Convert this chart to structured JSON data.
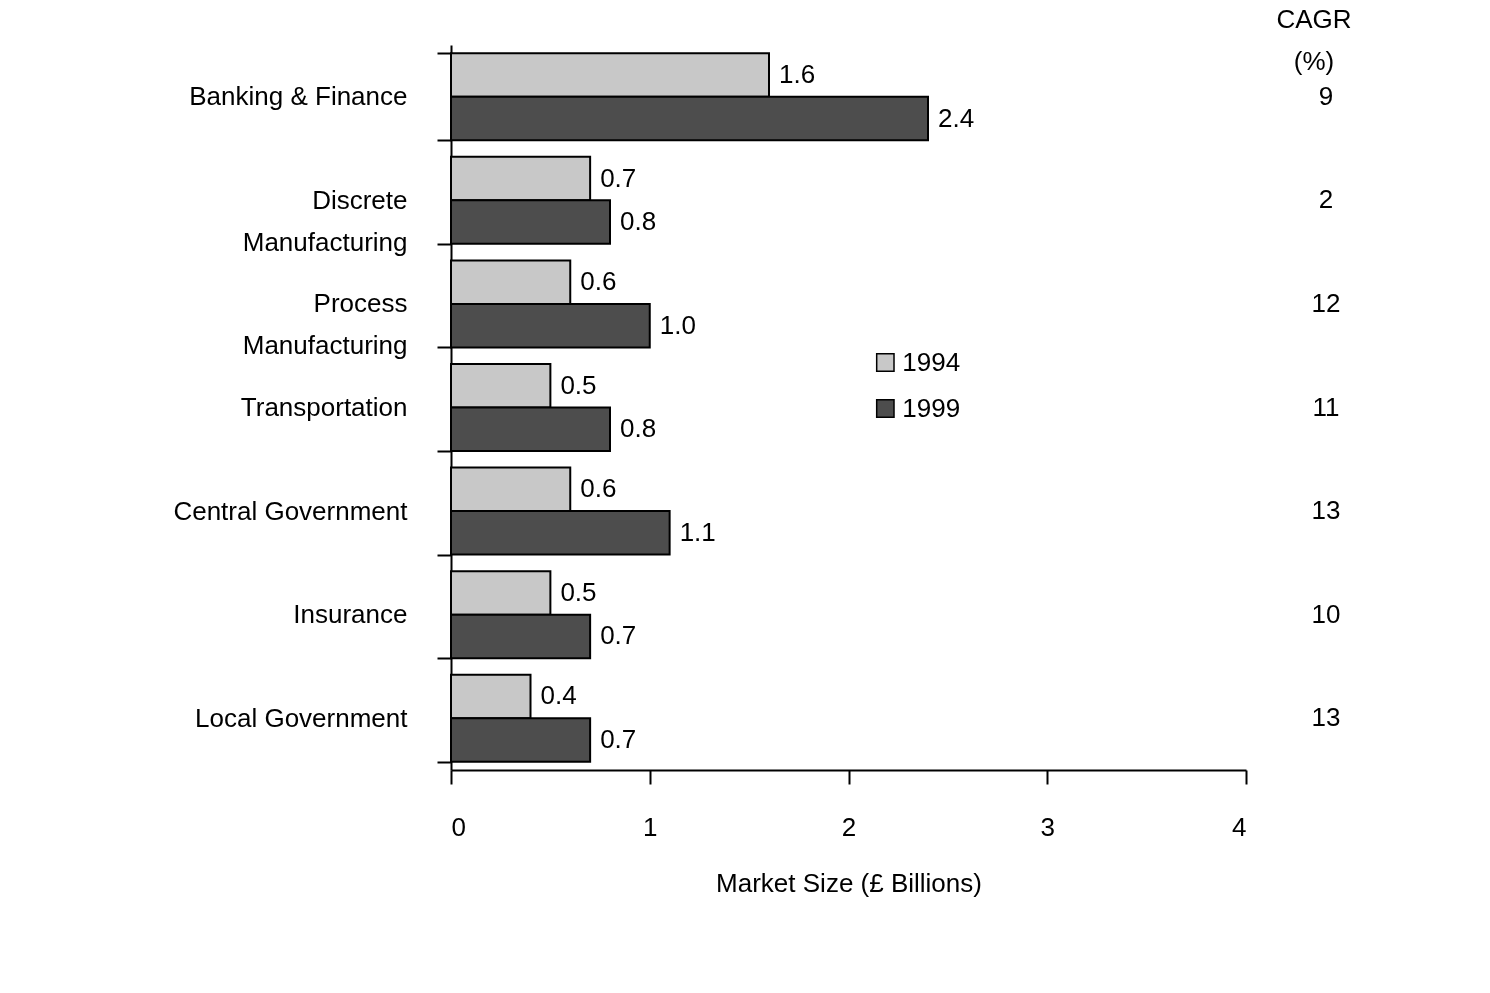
{
  "chart_data": {
    "type": "bar",
    "orientation": "horizontal",
    "xlabel": "Market Size (£ Billions)",
    "categories": [
      "Banking & Finance",
      "Discrete Manufacturing",
      "Process Manufacturing",
      "Transportation",
      "Central Government",
      "Insurance",
      "Local Government"
    ],
    "series": [
      {
        "name": "1994",
        "color": "#c8c8c8",
        "values": [
          1.6,
          0.7,
          0.6,
          0.5,
          0.6,
          0.5,
          0.4
        ],
        "value_labels": [
          "1.6",
          "0.7",
          "0.6",
          "0.5",
          "0.6",
          "0.5",
          "0.4"
        ]
      },
      {
        "name": "1999",
        "color": "#4d4d4d",
        "values": [
          2.4,
          0.8,
          1.0,
          0.8,
          1.1,
          0.7,
          0.7
        ],
        "value_labels": [
          "2.4",
          "0.8",
          "1.0",
          "0.8",
          "1.1",
          "0.7",
          "0.7"
        ]
      }
    ],
    "xlim": [
      0,
      4
    ],
    "xticks": [
      0,
      1,
      2,
      3,
      4
    ],
    "grid": false,
    "legend": "right",
    "annotations": [
      "CAGR (%)",
      "9",
      "2",
      "12",
      "11",
      "13",
      "10",
      "13"
    ]
  }
}
